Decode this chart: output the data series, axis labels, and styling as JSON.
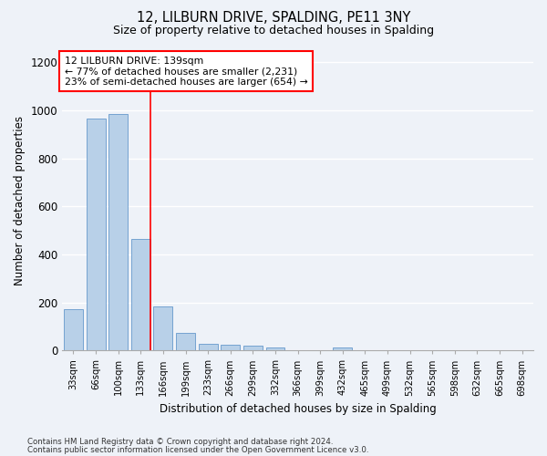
{
  "title": "12, LILBURN DRIVE, SPALDING, PE11 3NY",
  "subtitle": "Size of property relative to detached houses in Spalding",
  "xlabel": "Distribution of detached houses by size in Spalding",
  "ylabel": "Number of detached properties",
  "categories": [
    "33sqm",
    "66sqm",
    "100sqm",
    "133sqm",
    "166sqm",
    "199sqm",
    "233sqm",
    "266sqm",
    "299sqm",
    "332sqm",
    "366sqm",
    "399sqm",
    "432sqm",
    "465sqm",
    "499sqm",
    "532sqm",
    "565sqm",
    "598sqm",
    "632sqm",
    "665sqm",
    "698sqm"
  ],
  "values": [
    170,
    965,
    985,
    465,
    185,
    75,
    28,
    22,
    20,
    12,
    0,
    0,
    13,
    0,
    0,
    0,
    0,
    0,
    0,
    0,
    0
  ],
  "bar_color": "#b8d0e8",
  "bar_edge_color": "#6699cc",
  "red_line_index": 3,
  "annotation_line1": "12 LILBURN DRIVE: 139sqm",
  "annotation_line2": "← 77% of detached houses are smaller (2,231)",
  "annotation_line3": "23% of semi-detached houses are larger (654) →",
  "ylim": [
    0,
    1250
  ],
  "yticks": [
    0,
    200,
    400,
    600,
    800,
    1000,
    1200
  ],
  "background_color": "#eef2f8",
  "grid_color": "#ffffff",
  "footer_line1": "Contains HM Land Registry data © Crown copyright and database right 2024.",
  "footer_line2": "Contains public sector information licensed under the Open Government Licence v3.0."
}
